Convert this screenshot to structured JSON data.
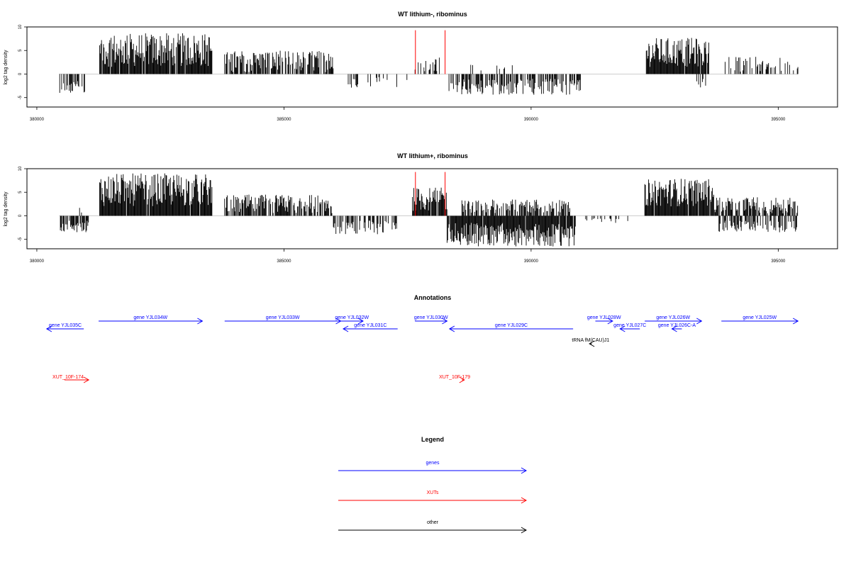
{
  "chart_data": [
    {
      "type": "bar",
      "title": "WT lithium-, ribominus",
      "ylabel": "log2 tag density",
      "xlim": [
        379800,
        396200
      ],
      "ylim": [
        -7,
        10
      ],
      "xticks": [
        380000,
        385000,
        390000,
        395000
      ],
      "xtick_labels": [
        "380000",
        "385000",
        "390000",
        "395000"
      ],
      "yticks": [
        -5,
        0,
        5,
        10
      ],
      "ytick_labels": [
        "-5",
        "0",
        "5",
        "10"
      ],
      "bar_color": "#000000",
      "marker_color": "#ff0000",
      "markers": [
        {
          "x": 387660,
          "y": 9.3
        },
        {
          "x": 388260,
          "y": 9.3
        }
      ],
      "segments": [
        {
          "start": 380450,
          "end": 380980,
          "min": -4.0,
          "max": -1.5,
          "density": 0.5
        },
        {
          "start": 381270,
          "end": 383550,
          "min": 1.5,
          "max": 8.7,
          "density": 0.95
        },
        {
          "start": 383800,
          "end": 386000,
          "min": 0.4,
          "max": 5.0,
          "density": 0.7
        },
        {
          "start": 386300,
          "end": 386500,
          "min": -3.0,
          "max": -1.0,
          "density": 0.3
        },
        {
          "start": 386700,
          "end": 387500,
          "min": -3.0,
          "max": -0.5,
          "density": 0.1
        },
        {
          "start": 387600,
          "end": 388150,
          "min": 0.5,
          "max": 3.5,
          "density": 0.3
        },
        {
          "start": 388300,
          "end": 391000,
          "min": -4.5,
          "max": -1.0,
          "density": 0.6
        },
        {
          "start": 388650,
          "end": 389800,
          "min": 0.5,
          "max": 2.5,
          "density": 0.1
        },
        {
          "start": 392330,
          "end": 393600,
          "min": 1.5,
          "max": 7.7,
          "density": 0.95
        },
        {
          "start": 393350,
          "end": 393550,
          "min": -3.0,
          "max": -1.0,
          "density": 0.3
        },
        {
          "start": 393900,
          "end": 395400,
          "min": 0.4,
          "max": 3.7,
          "density": 0.35
        }
      ]
    },
    {
      "type": "bar",
      "title": "WT lithium+, ribominus",
      "ylabel": "log2 tag density",
      "xlim": [
        379800,
        396200
      ],
      "ylim": [
        -7,
        10
      ],
      "xticks": [
        380000,
        385000,
        390000,
        395000
      ],
      "xtick_labels": [
        "380000",
        "385000",
        "390000",
        "395000"
      ],
      "yticks": [
        -5,
        0,
        5,
        10
      ],
      "ytick_labels": [
        "-5",
        "0",
        "5",
        "10"
      ],
      "bar_color": "#000000",
      "marker_color": "#ff0000",
      "markers": [
        {
          "x": 387660,
          "y": 9.3
        },
        {
          "x": 388260,
          "y": 9.3
        }
      ],
      "segments": [
        {
          "start": 380450,
          "end": 381050,
          "min": -3.5,
          "max": -1.0,
          "density": 0.7
        },
        {
          "start": 380800,
          "end": 381050,
          "min": 0.5,
          "max": 2.0,
          "density": 0.2
        },
        {
          "start": 381270,
          "end": 383550,
          "min": 2.0,
          "max": 9.0,
          "density": 0.97
        },
        {
          "start": 383800,
          "end": 386000,
          "min": 0.5,
          "max": 4.5,
          "density": 0.8
        },
        {
          "start": 386000,
          "end": 387300,
          "min": -4.0,
          "max": -1.0,
          "density": 0.6
        },
        {
          "start": 387600,
          "end": 388300,
          "min": 1.0,
          "max": 6.0,
          "density": 0.9
        },
        {
          "start": 388300,
          "end": 390900,
          "min": -6.5,
          "max": -1.5,
          "density": 0.97
        },
        {
          "start": 388600,
          "end": 390800,
          "min": 0.5,
          "max": 3.5,
          "density": 0.6
        },
        {
          "start": 391000,
          "end": 392000,
          "min": -1.5,
          "max": -0.5,
          "density": 0.15
        },
        {
          "start": 392300,
          "end": 393700,
          "min": 2.0,
          "max": 8.0,
          "density": 0.97
        },
        {
          "start": 393700,
          "end": 395400,
          "min": 0.5,
          "max": 4.0,
          "density": 0.7
        },
        {
          "start": 393800,
          "end": 395400,
          "min": -3.5,
          "max": -1.0,
          "density": 0.5
        }
      ]
    }
  ],
  "annotations": {
    "title": "Annotations",
    "genes": [
      {
        "label": "gene YJL035C",
        "start": 380950,
        "end": 380200,
        "row": 1
      },
      {
        "label": "gene YJL034W",
        "start": 381250,
        "end": 383350,
        "row": 0
      },
      {
        "label": "gene YJL033W",
        "start": 383800,
        "end": 386150,
        "row": 0
      },
      {
        "label": "gene YJL032W",
        "start": 386150,
        "end": 386600,
        "row": 0
      },
      {
        "label": "gene YJL031C",
        "start": 387300,
        "end": 386200,
        "row": 1
      },
      {
        "label": "gene YJL030W",
        "start": 387650,
        "end": 388300,
        "row": 0
      },
      {
        "label": "gene YJL029C",
        "start": 390850,
        "end": 388350,
        "row": 1
      },
      {
        "label": "gene YJL028W",
        "start": 391300,
        "end": 391650,
        "row": 0
      },
      {
        "label": "gene YJL027C",
        "start": 392200,
        "end": 391800,
        "row": 1
      },
      {
        "label": "gene YJL026W",
        "start": 392300,
        "end": 393450,
        "row": 0
      },
      {
        "label": "gene YJL026C-A",
        "start": 393050,
        "end": 392850,
        "row": 1
      },
      {
        "label": "gene YJL025W",
        "start": 393850,
        "end": 395400,
        "row": 0
      }
    ],
    "others": [
      {
        "label": "tRNA fM(CAU)J1",
        "start": 391230,
        "end": 391180
      }
    ],
    "xuts": [
      {
        "label": "XUT_10F-174",
        "start": 380560,
        "end": 381050
      },
      {
        "label": "XUT_10F-179",
        "start": 388600,
        "end": 388650
      }
    ]
  },
  "legend": {
    "title": "Legend",
    "items": [
      {
        "label": "genes",
        "color": "#0000ff"
      },
      {
        "label": "XUTs",
        "color": "#ff0000"
      },
      {
        "label": "other",
        "color": "#000000"
      }
    ]
  },
  "colors": {
    "gene": "#0000ff",
    "xut": "#ff0000",
    "other": "#000000",
    "baseline": "#bebebe"
  }
}
